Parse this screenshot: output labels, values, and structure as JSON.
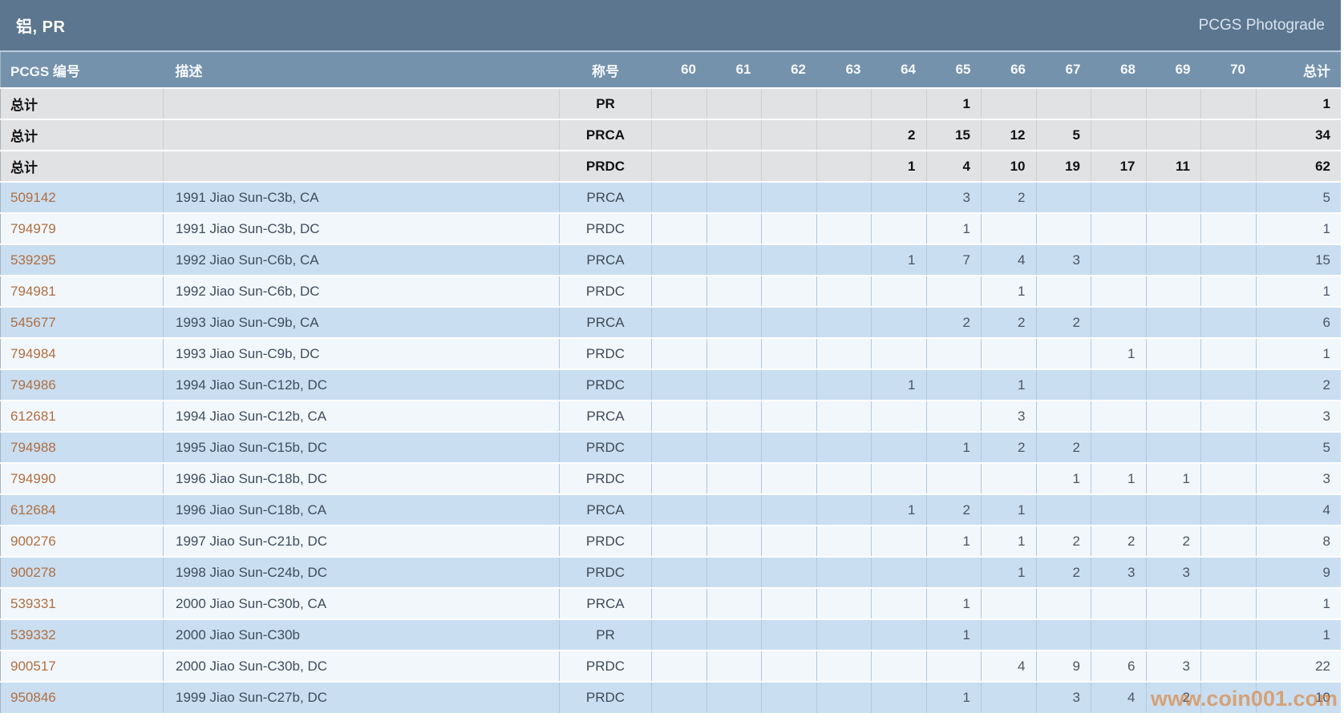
{
  "header": {
    "title": "铝, PR",
    "photograde_label": "PCGS Photograde"
  },
  "columns": {
    "pcgs_number": "PCGS 编号",
    "description": "描述",
    "designation": "称号",
    "grades": [
      "60",
      "61",
      "62",
      "63",
      "64",
      "65",
      "66",
      "67",
      "68",
      "69",
      "70"
    ],
    "total": "总计"
  },
  "summary_label": "总计",
  "summary_rows": [
    {
      "designation": "PR",
      "counts": [
        "",
        "",
        "",
        "",
        "",
        "1",
        "",
        "",
        "",
        "",
        ""
      ],
      "total": "1"
    },
    {
      "designation": "PRCA",
      "counts": [
        "",
        "",
        "",
        "",
        "2",
        "15",
        "12",
        "5",
        "",
        "",
        ""
      ],
      "total": "34"
    },
    {
      "designation": "PRDC",
      "counts": [
        "",
        "",
        "",
        "",
        "1",
        "4",
        "10",
        "19",
        "17",
        "11",
        ""
      ],
      "total": "62"
    }
  ],
  "rows": [
    {
      "pcgs": "509142",
      "description": "1991 Jiao Sun-C3b, CA",
      "designation": "PRCA",
      "counts": [
        "",
        "",
        "",
        "",
        "",
        "3",
        "2",
        "",
        "",
        "",
        ""
      ],
      "total": "5"
    },
    {
      "pcgs": "794979",
      "description": "1991 Jiao Sun-C3b, DC",
      "designation": "PRDC",
      "counts": [
        "",
        "",
        "",
        "",
        "",
        "1",
        "",
        "",
        "",
        "",
        ""
      ],
      "total": "1"
    },
    {
      "pcgs": "539295",
      "description": "1992 Jiao Sun-C6b, CA",
      "designation": "PRCA",
      "counts": [
        "",
        "",
        "",
        "",
        "1",
        "7",
        "4",
        "3",
        "",
        "",
        ""
      ],
      "total": "15"
    },
    {
      "pcgs": "794981",
      "description": "1992 Jiao Sun-C6b, DC",
      "designation": "PRDC",
      "counts": [
        "",
        "",
        "",
        "",
        "",
        "",
        "1",
        "",
        "",
        "",
        ""
      ],
      "total": "1"
    },
    {
      "pcgs": "545677",
      "description": "1993 Jiao Sun-C9b, CA",
      "designation": "PRCA",
      "counts": [
        "",
        "",
        "",
        "",
        "",
        "2",
        "2",
        "2",
        "",
        "",
        ""
      ],
      "total": "6"
    },
    {
      "pcgs": "794984",
      "description": "1993 Jiao Sun-C9b, DC",
      "designation": "PRDC",
      "counts": [
        "",
        "",
        "",
        "",
        "",
        "",
        "",
        "",
        "1",
        "",
        ""
      ],
      "total": "1"
    },
    {
      "pcgs": "794986",
      "description": "1994 Jiao Sun-C12b, DC",
      "designation": "PRDC",
      "counts": [
        "",
        "",
        "",
        "",
        "1",
        "",
        "1",
        "",
        "",
        "",
        ""
      ],
      "total": "2"
    },
    {
      "pcgs": "612681",
      "description": "1994 Jiao Sun-C12b, CA",
      "designation": "PRCA",
      "counts": [
        "",
        "",
        "",
        "",
        "",
        "",
        "3",
        "",
        "",
        "",
        ""
      ],
      "total": "3"
    },
    {
      "pcgs": "794988",
      "description": "1995 Jiao Sun-C15b, DC",
      "designation": "PRDC",
      "counts": [
        "",
        "",
        "",
        "",
        "",
        "1",
        "2",
        "2",
        "",
        "",
        ""
      ],
      "total": "5"
    },
    {
      "pcgs": "794990",
      "description": "1996 Jiao Sun-C18b, DC",
      "designation": "PRDC",
      "counts": [
        "",
        "",
        "",
        "",
        "",
        "",
        "",
        "1",
        "1",
        "1",
        ""
      ],
      "total": "3"
    },
    {
      "pcgs": "612684",
      "description": "1996 Jiao Sun-C18b, CA",
      "designation": "PRCA",
      "counts": [
        "",
        "",
        "",
        "",
        "1",
        "2",
        "1",
        "",
        "",
        "",
        ""
      ],
      "total": "4"
    },
    {
      "pcgs": "900276",
      "description": "1997 Jiao Sun-C21b, DC",
      "designation": "PRDC",
      "counts": [
        "",
        "",
        "",
        "",
        "",
        "1",
        "1",
        "2",
        "2",
        "2",
        ""
      ],
      "total": "8"
    },
    {
      "pcgs": "900278",
      "description": "1998 Jiao Sun-C24b, DC",
      "designation": "PRDC",
      "counts": [
        "",
        "",
        "",
        "",
        "",
        "",
        "1",
        "2",
        "3",
        "3",
        ""
      ],
      "total": "9"
    },
    {
      "pcgs": "539331",
      "description": "2000 Jiao Sun-C30b, CA",
      "designation": "PRCA",
      "counts": [
        "",
        "",
        "",
        "",
        "",
        "1",
        "",
        "",
        "",
        "",
        ""
      ],
      "total": "1"
    },
    {
      "pcgs": "539332",
      "description": "2000 Jiao Sun-C30b",
      "designation": "PR",
      "counts": [
        "",
        "",
        "",
        "",
        "",
        "1",
        "",
        "",
        "",
        "",
        ""
      ],
      "total": "1"
    },
    {
      "pcgs": "900517",
      "description": "2000 Jiao Sun-C30b, DC",
      "designation": "PRDC",
      "counts": [
        "",
        "",
        "",
        "",
        "",
        "",
        "4",
        "9",
        "6",
        "3",
        ""
      ],
      "total": "22"
    },
    {
      "pcgs": "950846",
      "description": "1999 Jiao Sun-C27b, DC",
      "designation": "PRDC",
      "counts": [
        "",
        "",
        "",
        "",
        "",
        "1",
        "",
        "3",
        "4",
        "2",
        ""
      ],
      "total": "10"
    }
  ],
  "watermark": "www.coin001.com",
  "colors": {
    "titlebar_bg": "#5c7690",
    "header_row_bg": "#7492ab",
    "summary_row_bg": "#e1e2e4",
    "row_blue": "#c9def1",
    "row_white": "#f2f7fc",
    "grid_line": "#b0c8de",
    "link_orange": "#b06f41",
    "watermark_orange": "#df7c2c"
  }
}
